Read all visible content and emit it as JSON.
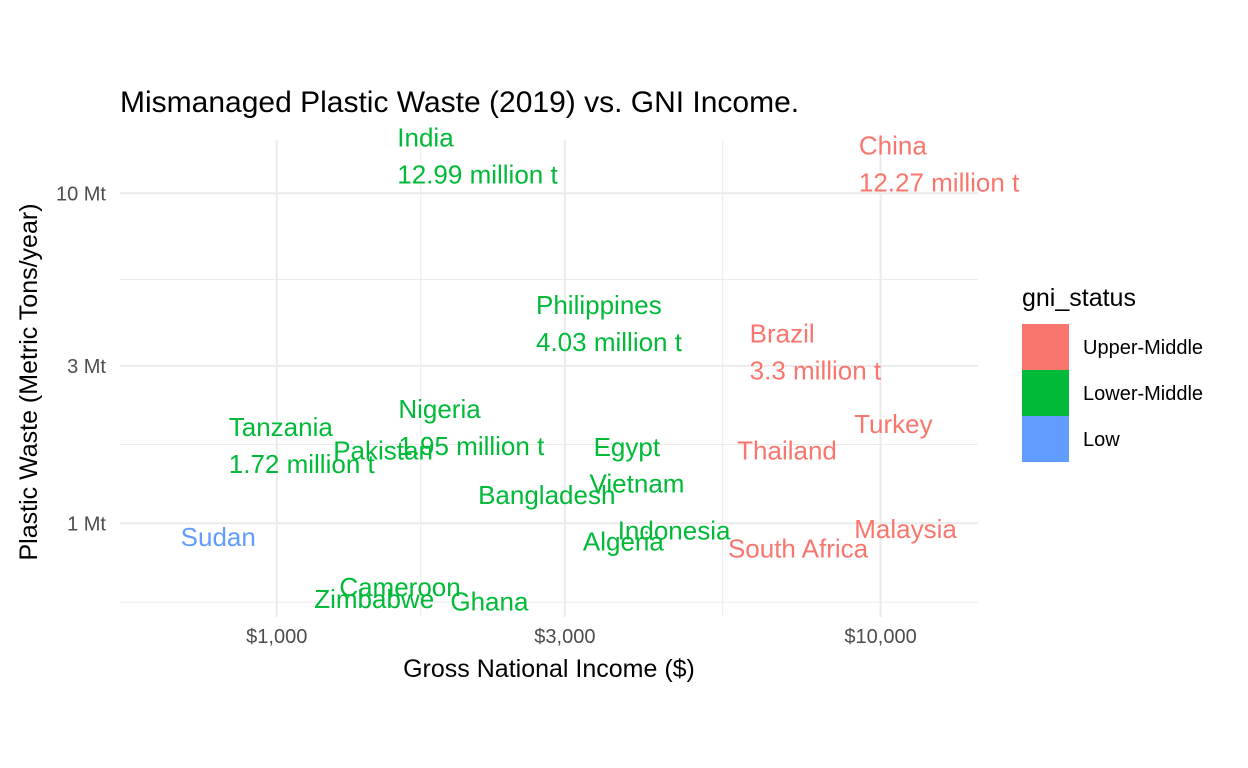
{
  "chart_data": {
    "type": "scatter",
    "title": "Mismanaged Plastic Waste (2019) vs. GNI Income.",
    "xlabel": "Gross National Income ($)",
    "ylabel": "Plastic Waste (Metric Tons/year)",
    "x_scale": "log10",
    "y_scale": "log10",
    "xlim": [
      550,
      14500
    ],
    "ylim": [
      0.52,
      14.5
    ],
    "x_ticks": [
      {
        "value": 1000,
        "label": "$1,000"
      },
      {
        "value": 3000,
        "label": "$3,000"
      },
      {
        "value": 10000,
        "label": "$10,000"
      }
    ],
    "x_minor_ticks": [
      1732,
      5477
    ],
    "y_ticks": [
      {
        "value": 1,
        "label": "1 Mt"
      },
      {
        "value": 3,
        "label": "3 Mt"
      },
      {
        "value": 10,
        "label": "10 Mt"
      }
    ],
    "y_minor_ticks": [
      0.577,
      1.732,
      5.477
    ],
    "grid": true,
    "legend": {
      "title": "gni_status",
      "position": "right",
      "entries": [
        {
          "label": "Upper-Middle",
          "color": "#F8766D"
        },
        {
          "label": "Lower-Middle",
          "color": "#00BA38"
        },
        {
          "label": "Low",
          "color": "#619CFF"
        }
      ]
    },
    "points": [
      {
        "country": "India",
        "label": "India",
        "label2": "12.99 million t",
        "gni": 2150,
        "waste": 12.99,
        "group": "Lower-Middle"
      },
      {
        "country": "China",
        "label": "China",
        "label2": "12.27 million t",
        "gni": 12500,
        "waste": 12.27,
        "group": "Upper-Middle"
      },
      {
        "country": "Philippines",
        "label": "Philippines",
        "label2": "4.03 million t",
        "gni": 3550,
        "waste": 4.03,
        "group": "Lower-Middle"
      },
      {
        "country": "Brazil",
        "label": "Brazil",
        "label2": "3.3 million t",
        "gni": 7800,
        "waste": 3.3,
        "group": "Upper-Middle"
      },
      {
        "country": "Nigeria",
        "label": "Nigeria",
        "label2": "1.95 million t",
        "gni": 2100,
        "waste": 1.95,
        "group": "Lower-Middle"
      },
      {
        "country": "Tanzania",
        "label": "Tanzania",
        "label2": "1.72 million t",
        "gni": 1100,
        "waste": 1.72,
        "group": "Lower-Middle"
      },
      {
        "country": "Turkey",
        "label": "Turkey",
        "label2": "",
        "gni": 10500,
        "waste": 2.0,
        "group": "Upper-Middle"
      },
      {
        "country": "Thailand",
        "label": "Thailand",
        "label2": "",
        "gni": 7000,
        "waste": 1.66,
        "group": "Upper-Middle"
      },
      {
        "country": "Pakistan",
        "label": "Pakistan",
        "label2": "",
        "gni": 1500,
        "waste": 1.66,
        "group": "Lower-Middle"
      },
      {
        "country": "Egypt",
        "label": "Egypt",
        "label2": "",
        "gni": 3800,
        "waste": 1.7,
        "group": "Lower-Middle"
      },
      {
        "country": "Vietnam",
        "label": "Vietnam",
        "label2": "",
        "gni": 3950,
        "waste": 1.32,
        "group": "Lower-Middle"
      },
      {
        "country": "Bangladesh",
        "label": "Bangladesh",
        "label2": "",
        "gni": 2800,
        "waste": 1.22,
        "group": "Lower-Middle"
      },
      {
        "country": "Indonesia",
        "label": "Indonesia",
        "label2": "",
        "gni": 4550,
        "waste": 0.95,
        "group": "Lower-Middle"
      },
      {
        "country": "Algeria",
        "label": "Algeria",
        "label2": "",
        "gni": 3750,
        "waste": 0.88,
        "group": "Lower-Middle"
      },
      {
        "country": "South Africa",
        "label": "South Africa",
        "label2": "",
        "gni": 7300,
        "waste": 0.84,
        "group": "Upper-Middle"
      },
      {
        "country": "Malaysia",
        "label": "Malaysia",
        "label2": "",
        "gni": 11000,
        "waste": 0.96,
        "group": "Upper-Middle"
      },
      {
        "country": "Sudan",
        "label": "Sudan",
        "label2": "",
        "gni": 800,
        "waste": 0.91,
        "group": "Low"
      },
      {
        "country": "Cameroon",
        "label": "Cameroon",
        "label2": "",
        "gni": 1600,
        "waste": 0.64,
        "group": "Lower-Middle"
      },
      {
        "country": "Zimbabwe",
        "label": "Zimbabwe",
        "label2": "",
        "gni": 1450,
        "waste": 0.59,
        "group": "Lower-Middle"
      },
      {
        "country": "Ghana",
        "label": "Ghana",
        "label2": "",
        "gni": 2250,
        "waste": 0.58,
        "group": "Lower-Middle"
      }
    ]
  }
}
